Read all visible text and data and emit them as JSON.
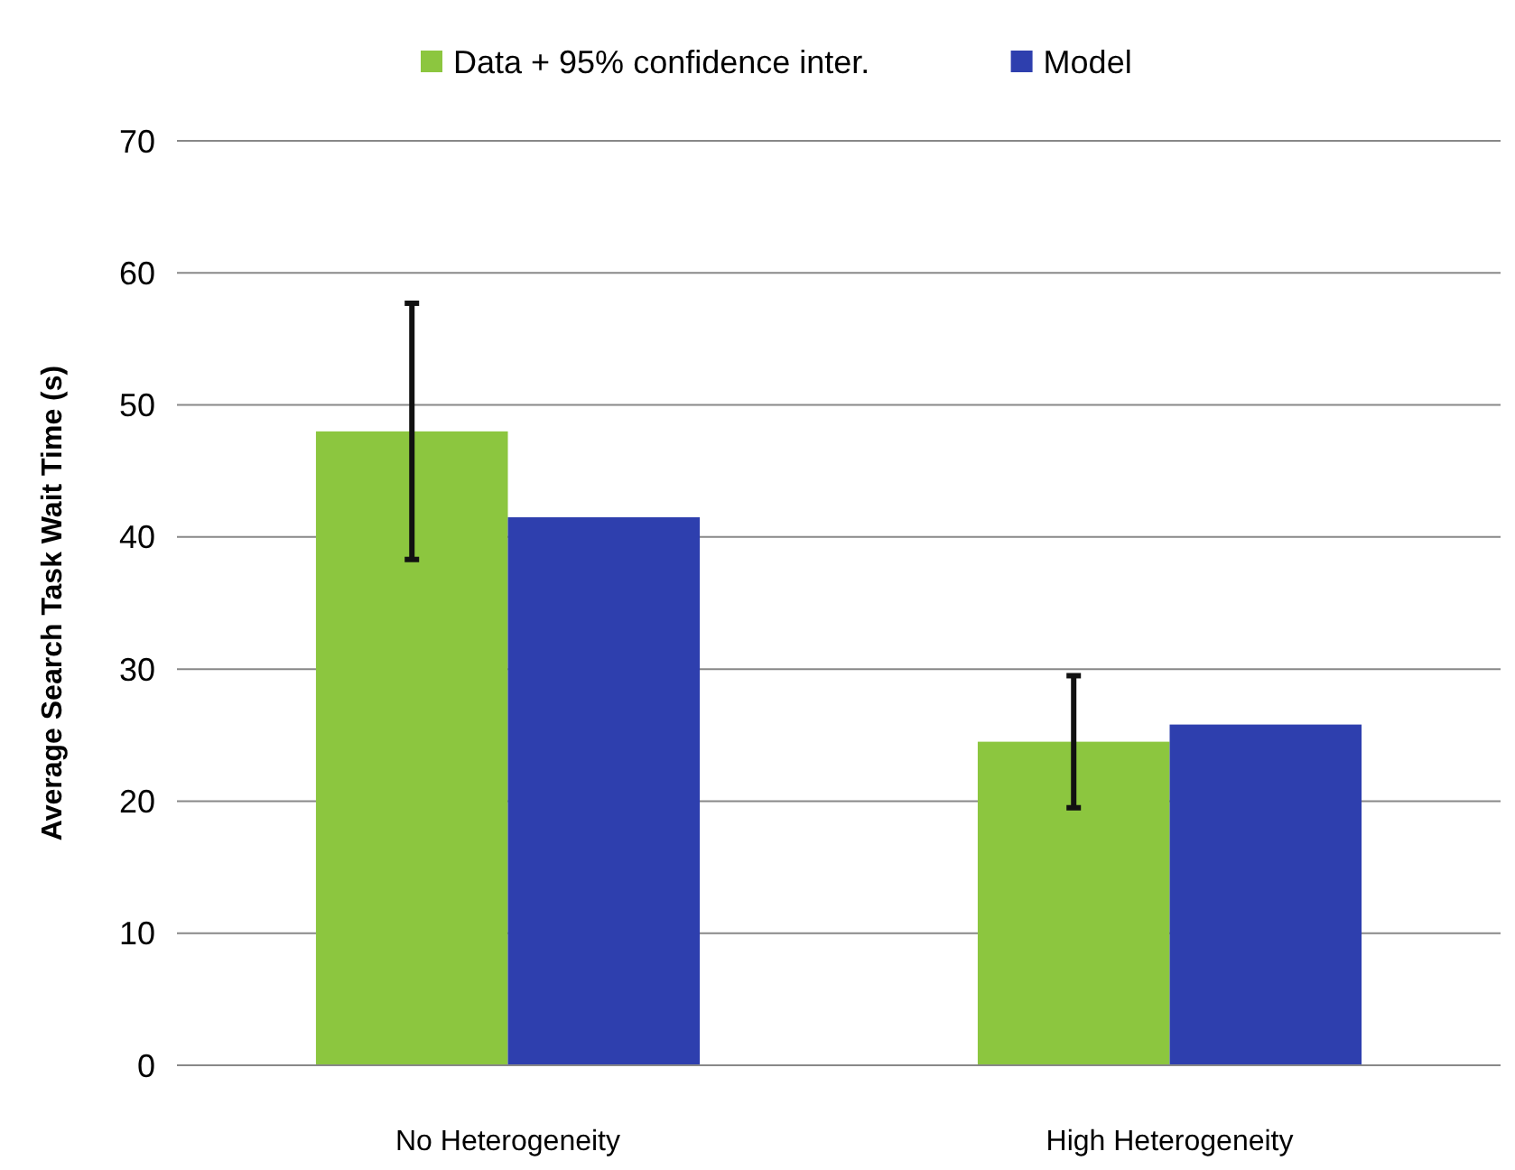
{
  "chart_data": {
    "type": "bar",
    "ylabel": "Average Search Task Wait Time (s)",
    "categories": [
      "No Heterogeneity",
      "High Heterogeneity"
    ],
    "series": [
      {
        "name": "Data + 95% confidence inter.",
        "color": "#8cc63f",
        "values": [
          48,
          24.5
        ],
        "errors": [
          9.7,
          5
        ]
      },
      {
        "name": "Model",
        "color": "#2e3fae",
        "values": [
          41.5,
          25.8
        ]
      }
    ],
    "ylim": [
      0,
      70
    ],
    "yticks": [
      0,
      10,
      20,
      30,
      40,
      50,
      60,
      70
    ],
    "grid": "y",
    "legend": "top"
  }
}
